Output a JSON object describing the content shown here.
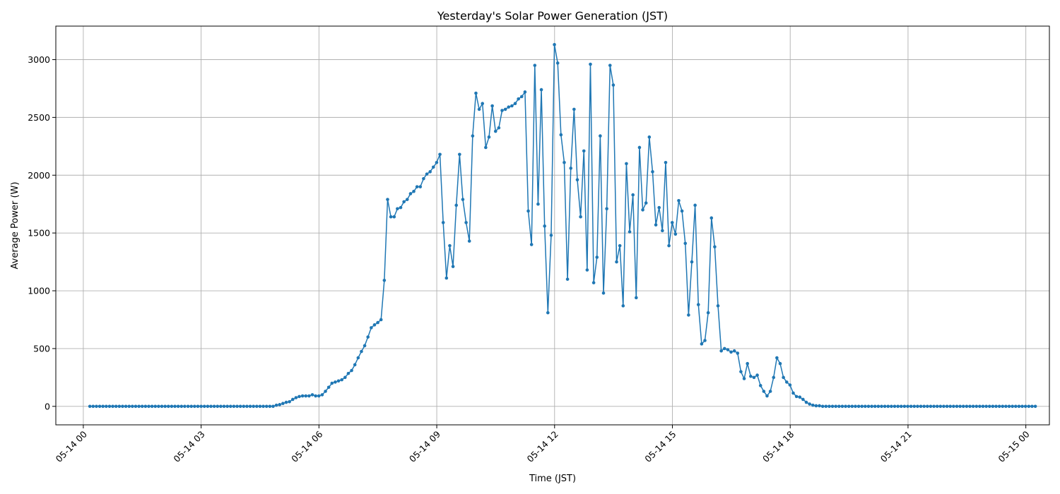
{
  "chart_data": {
    "type": "line",
    "title": "Yesterday's Solar Power Generation (JST)",
    "xlabel": "Time (JST)",
    "ylabel": "Average Power (W)",
    "grid": true,
    "x_unit": "hours from 05-14 00:00",
    "xlim_hours": [
      -0.7,
      24.6
    ],
    "ylim": [
      -160,
      3290
    ],
    "x_ticks": [
      {
        "hour": 0,
        "label": "05-14 00"
      },
      {
        "hour": 3,
        "label": "05-14 03"
      },
      {
        "hour": 6,
        "label": "05-14 06"
      },
      {
        "hour": 9,
        "label": "05-14 09"
      },
      {
        "hour": 12,
        "label": "05-14 12"
      },
      {
        "hour": 15,
        "label": "05-14 15"
      },
      {
        "hour": 18,
        "label": "05-14 18"
      },
      {
        "hour": 21,
        "label": "05-14 21"
      },
      {
        "hour": 24,
        "label": "05-15 00"
      }
    ],
    "y_ticks": [
      {
        "value": 0,
        "label": "0"
      },
      {
        "value": 500,
        "label": "500"
      },
      {
        "value": 1000,
        "label": "1000"
      },
      {
        "value": 1500,
        "label": "1500"
      },
      {
        "value": 2000,
        "label": "2000"
      },
      {
        "value": 2500,
        "label": "2500"
      },
      {
        "value": 3000,
        "label": "3000"
      }
    ],
    "series": [
      {
        "color": "#1f77b4",
        "segments": [
          {
            "start_hour": 0.1667,
            "step_hours": 0.0833,
            "values": [
              0,
              0,
              0,
              0,
              0,
              0,
              0,
              0,
              0,
              0,
              0,
              0,
              0,
              0,
              0,
              0,
              0,
              0,
              0,
              0,
              0,
              0,
              0,
              0,
              0,
              0,
              0,
              0,
              0,
              0
            ]
          },
          {
            "start_hour": 2.6667,
            "step_hours": 0.0833,
            "values": [
              0,
              0,
              0,
              0,
              0,
              0,
              0,
              0,
              0,
              0,
              0,
              0,
              0,
              0,
              0,
              0,
              0,
              0,
              0,
              0,
              0,
              0,
              0,
              0,
              0,
              0,
              0,
              10,
              15,
              25,
              35,
              40,
              60,
              75,
              85,
              90,
              90,
              90,
              100,
              90,
              90,
              100,
              130,
              165,
              200,
              210,
              220,
              230,
              250,
              285,
              310,
              360,
              420,
              475,
              525,
              600,
              680,
              705,
              725,
              750,
              1090,
              1790,
              1640,
              1640,
              1710,
              1720,
              1770,
              1790,
              1840,
              1860,
              1900,
              1900,
              1970,
              2010,
              2030,
              2070,
              2110,
              2180,
              1590,
              1110,
              1390,
              1210,
              1740,
              2180,
              1790,
              1590,
              1430,
              2340,
              2710,
              2570,
              2620,
              2240,
              2330,
              2600,
              2380,
              2410,
              2560,
              2570,
              2590,
              2600,
              2620,
              2660,
              2680,
              2720,
              1690,
              1400,
              2950,
              1750,
              2740,
              1560,
              810,
              1480,
              3130,
              2970,
              2350,
              2110,
              1100,
              2060,
              2570,
              1960,
              1640,
              2210,
              1180,
              2960,
              1070,
              1290,
              2340,
              980,
              1710,
              2950,
              2780,
              1250,
              1390,
              870,
              2100,
              1510,
              1830,
              940,
              2240,
              1700,
              1760,
              2330,
              2030,
              1570,
              1720,
              1520,
              2110,
              1390,
              1590,
              1490,
              1780,
              1690,
              1410,
              790,
              1250,
              1740,
              880,
              540,
              570,
              810,
              1630,
              1380,
              870,
              480,
              500,
              490,
              470,
              480,
              460,
              300,
              240,
              370,
              260,
              250,
              270,
              180,
              130,
              90,
              130,
              250,
              420,
              370,
              250,
              210,
              185,
              115,
              85,
              80,
              60,
              35,
              20,
              10,
              5,
              5,
              0,
              0,
              0,
              0,
              0,
              0,
              0,
              0,
              0,
              0,
              0,
              0,
              0,
              0,
              0,
              0,
              0,
              0,
              0,
              0,
              0,
              0,
              0,
              0,
              0,
              0,
              0,
              0,
              0,
              0,
              0,
              0,
              0,
              0,
              0,
              0,
              0,
              0,
              0,
              0,
              0,
              0,
              0,
              0,
              0,
              0,
              0,
              0,
              0,
              0,
              0,
              0,
              0,
              0,
              0,
              0,
              0,
              0,
              0,
              0,
              0,
              0,
              0,
              0,
              0,
              0
            ]
          }
        ]
      }
    ]
  }
}
